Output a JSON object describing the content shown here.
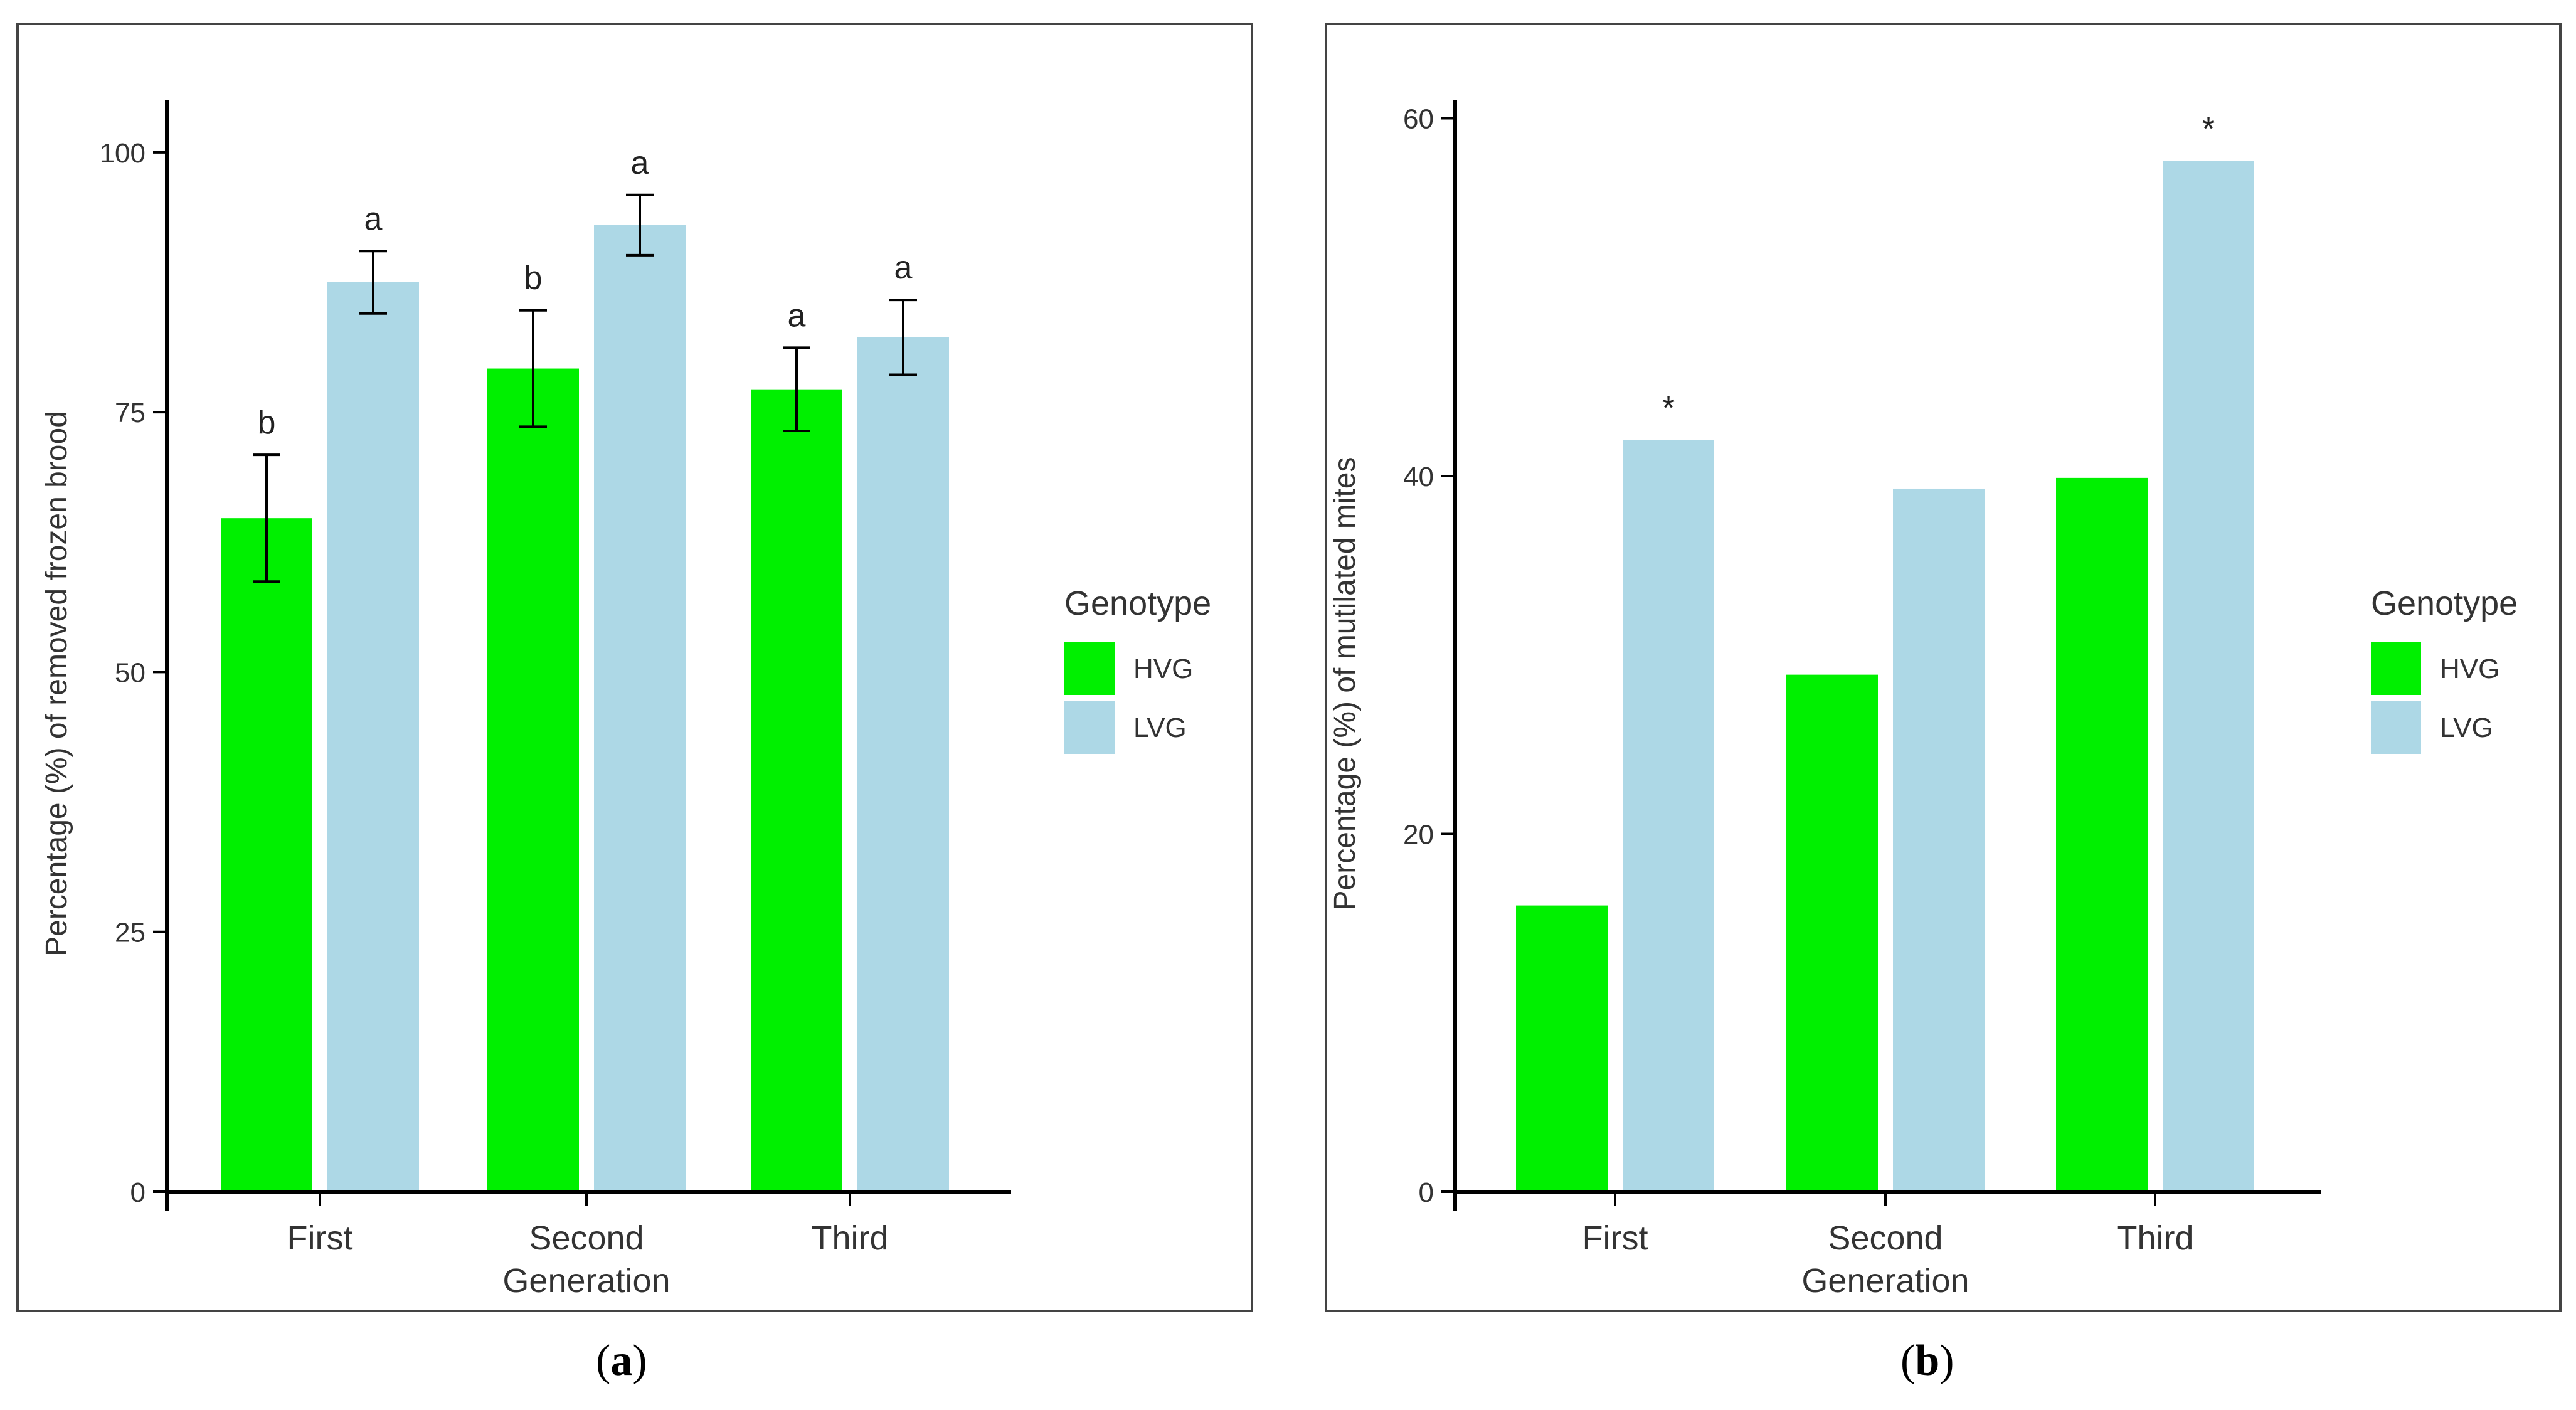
{
  "chart_data": [
    {
      "type": "bar",
      "panel": "a",
      "categories": [
        "First",
        "Second",
        "Third"
      ],
      "xlabel": "Generation",
      "ylabel": "Percentage (%) of removed frozen brood",
      "ylim": [
        0,
        105
      ],
      "yticks": [
        0,
        25,
        50,
        75,
        100
      ],
      "legend": {
        "title": "Genotype",
        "placement": "right"
      },
      "series": [
        {
          "name": "HVG",
          "color": "#00f000",
          "values": [
            64.8,
            79.2,
            77.2
          ],
          "errors": [
            6.1,
            5.6,
            4.0
          ],
          "labels": [
            "b",
            "b",
            "a"
          ]
        },
        {
          "name": "LVG",
          "color": "#add8e6",
          "values": [
            87.5,
            93.0,
            82.2
          ],
          "errors": [
            3.0,
            2.9,
            3.6
          ],
          "labels": [
            "a",
            "a",
            "a"
          ]
        }
      ]
    },
    {
      "type": "bar",
      "panel": "b",
      "categories": [
        "First",
        "Second",
        "Third"
      ],
      "xlabel": "Generation",
      "ylabel": "Percentage (%) of mutilated mites",
      "ylim": [
        0,
        61
      ],
      "yticks": [
        0,
        20,
        40,
        60
      ],
      "legend": {
        "title": "Genotype",
        "placement": "right"
      },
      "series": [
        {
          "name": "HVG",
          "color": "#00f000",
          "values": [
            16.0,
            28.9,
            39.9
          ],
          "labels": [
            "",
            "",
            ""
          ]
        },
        {
          "name": "LVG",
          "color": "#add8e6",
          "values": [
            42.0,
            39.3,
            57.6
          ],
          "labels": [
            "*",
            "",
            "*"
          ]
        }
      ]
    }
  ],
  "panel_labels": {
    "a": "a",
    "b": "b"
  }
}
